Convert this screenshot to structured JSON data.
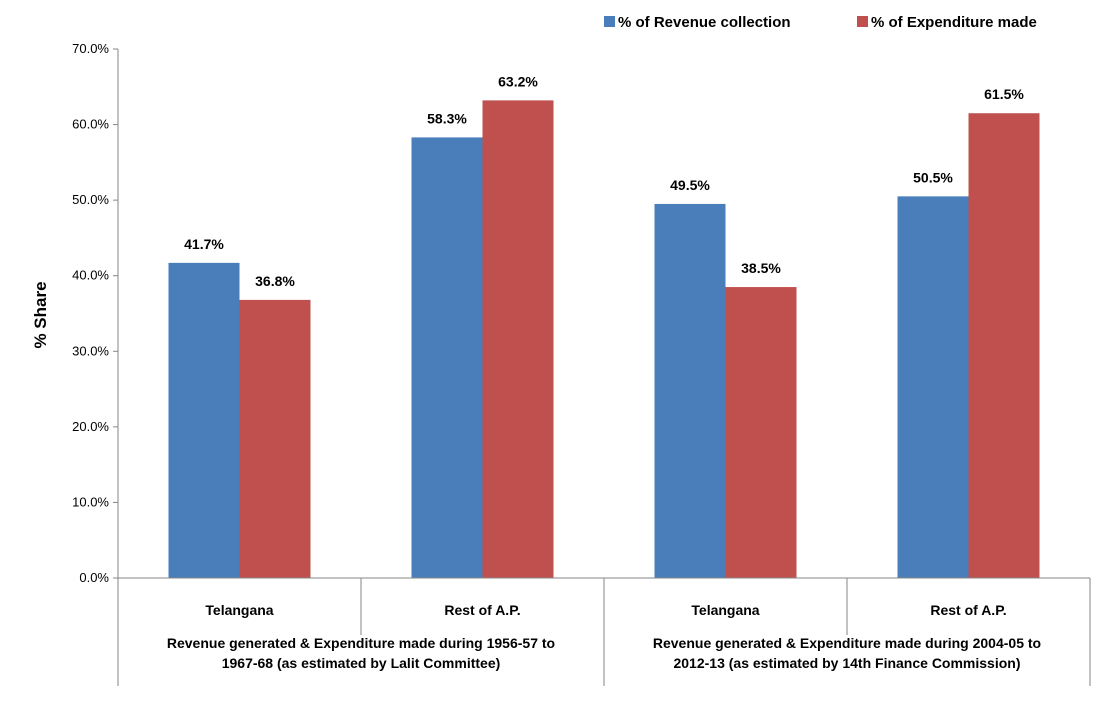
{
  "chart_data": {
    "type": "bar",
    "title": "",
    "ylabel": "% Share",
    "xlabel": "",
    "ylim": [
      0,
      70
    ],
    "yticks": [
      "0.0%",
      "10.0%",
      "20.0%",
      "30.0%",
      "40.0%",
      "50.0%",
      "60.0%",
      "70.0%"
    ],
    "categories": [
      "Telangana",
      "Rest of A.P.",
      "Telangana",
      "Rest of A.P."
    ],
    "groups": [
      {
        "label_lines": [
          "Revenue generated & Expenditure made during 1956-57 to",
          "1967-68 (as estimated by Lalit Committee)"
        ]
      },
      {
        "label_lines": [
          "Revenue generated & Expenditure made during 2004-05 to",
          "2012-13  (as estimated by 14th Finance Commission)"
        ]
      }
    ],
    "series": [
      {
        "name": "% of Revenue collection",
        "color": "#4a7ebb",
        "values": [
          41.7,
          58.3,
          49.5,
          50.5
        ],
        "labels": [
          "41.7%",
          "58.3%",
          "49.5%",
          "50.5%"
        ]
      },
      {
        "name": "% of Expenditure made",
        "color": "#c0504d",
        "values": [
          36.8,
          63.2,
          38.5,
          61.5
        ],
        "labels": [
          "36.8%",
          "63.2%",
          "38.5%",
          "61.5%"
        ]
      }
    ],
    "legend": "top-right",
    "grid": false
  }
}
